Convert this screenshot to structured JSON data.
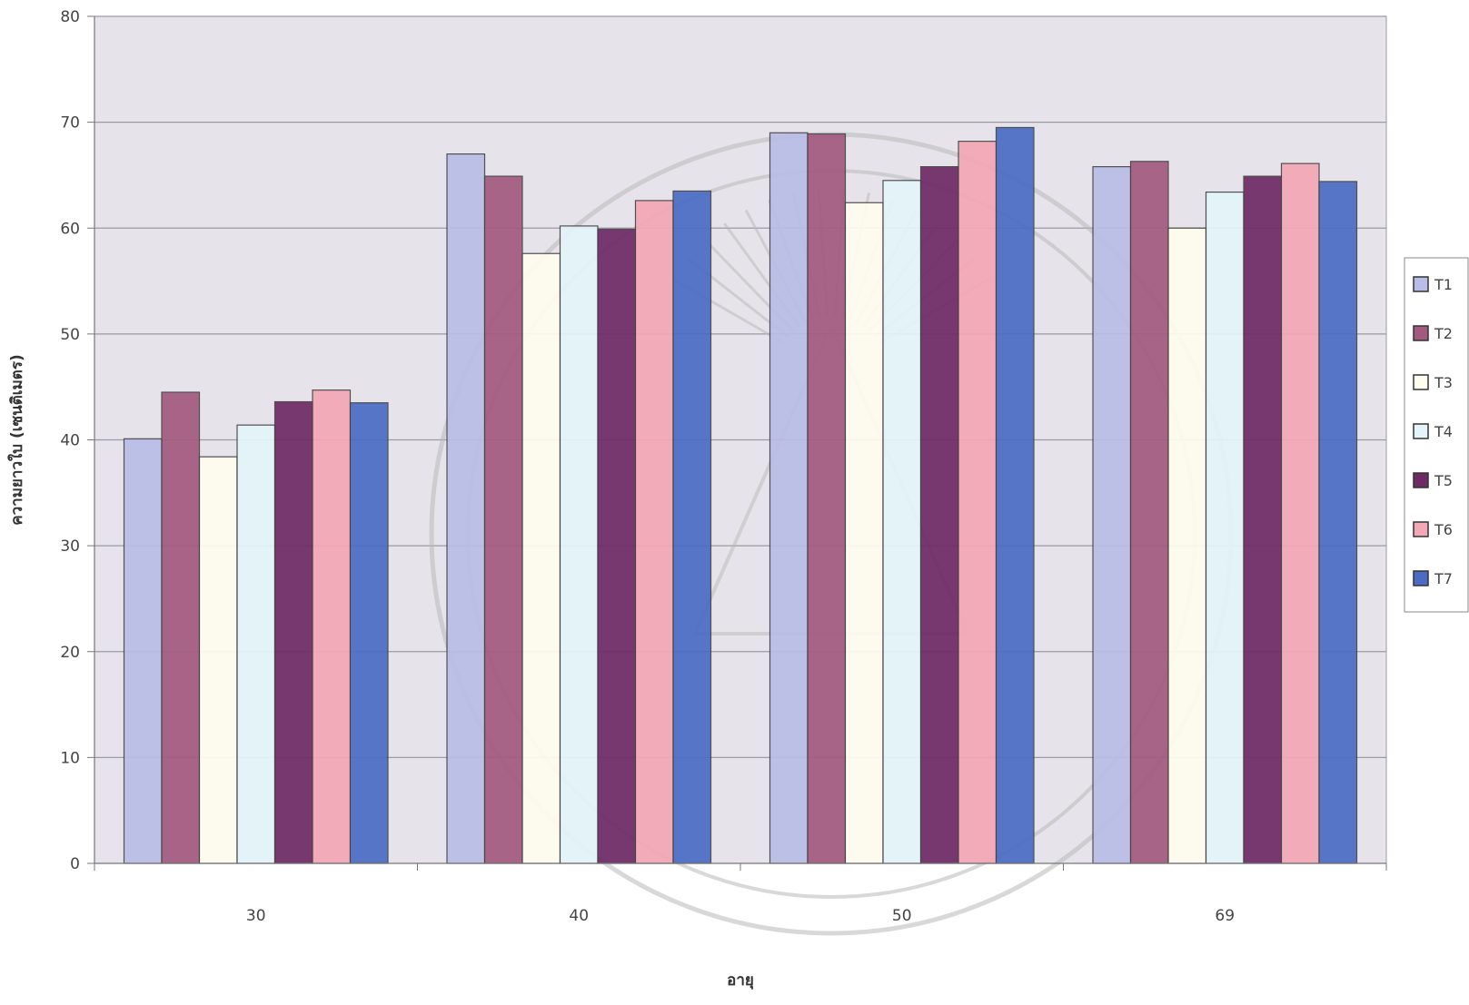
{
  "colors": {
    "plot_background": "#e6e4ea",
    "gridline": "#9c9aa2",
    "bar_outline": "#444444",
    "axis": "#777777",
    "watermark": "#b8b8b8"
  },
  "chart_data": {
    "type": "bar",
    "title": "",
    "xlabel": "อายุ",
    "ylabel": "ความยาวใบ (เซนติเมตร)",
    "categories": [
      "30",
      "40",
      "50",
      "69"
    ],
    "ylim": [
      0,
      80
    ],
    "yticks": [
      0,
      10,
      20,
      30,
      40,
      50,
      60,
      70,
      80
    ],
    "grid": true,
    "legend_position": "right",
    "series": [
      {
        "name": "T1",
        "color": "#b9bce6",
        "values": [
          40.1,
          67.0,
          69.0,
          65.8
        ]
      },
      {
        "name": "T2",
        "color": "#a35a7f",
        "values": [
          44.5,
          64.9,
          68.9,
          66.3
        ]
      },
      {
        "name": "T3",
        "color": "#fffdee",
        "values": [
          38.4,
          57.6,
          62.4,
          60.0
        ]
      },
      {
        "name": "T4",
        "color": "#e3f5fa",
        "values": [
          41.4,
          60.2,
          64.5,
          63.4
        ]
      },
      {
        "name": "T5",
        "color": "#6e2a65",
        "values": [
          43.6,
          59.9,
          65.8,
          64.9
        ]
      },
      {
        "name": "T6",
        "color": "#f4a7b5",
        "values": [
          44.7,
          62.6,
          68.2,
          66.1
        ]
      },
      {
        "name": "T7",
        "color": "#4a6cc4",
        "values": [
          43.5,
          63.5,
          69.5,
          64.4
        ]
      }
    ]
  },
  "watermark": {
    "description_icon": "university-seal-watermark"
  }
}
